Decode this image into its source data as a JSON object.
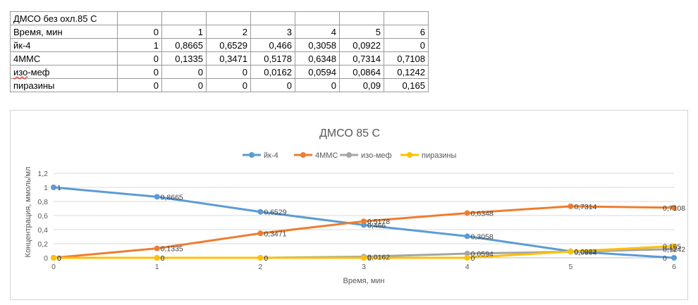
{
  "table": {
    "title": "ДМСО без охл.85 С",
    "rows": [
      {
        "label": "Время, мин",
        "values": [
          "0",
          "1",
          "2",
          "3",
          "4",
          "5",
          "6"
        ]
      },
      {
        "label": "йк-4",
        "values": [
          "1",
          "0,8665",
          "0,6529",
          "0,466",
          "0,3058",
          "0,0922",
          "0"
        ]
      },
      {
        "label": "4ММС",
        "values": [
          "0",
          "0,1335",
          "0,3471",
          "0,5178",
          "0,6348",
          "0,7314",
          "0,7108"
        ]
      },
      {
        "label": "изо-меф",
        "values": [
          "0",
          "0",
          "0",
          "0,0162",
          "0,0594",
          "0,0864",
          "0,1242"
        ]
      },
      {
        "label": "пиразины",
        "values": [
          "0",
          "0",
          "0",
          "0",
          "0",
          "0,09",
          "0,165"
        ]
      }
    ]
  },
  "chart_data": {
    "type": "line",
    "title": "ДМСО 85 С",
    "xlabel": "Время, мин",
    "ylabel": "Концентрация, ммоль/мл",
    "x": [
      0,
      1,
      2,
      3,
      4,
      5,
      6
    ],
    "xlim": [
      0,
      6
    ],
    "ylim": [
      0,
      1.2
    ],
    "yticks": [
      "0",
      "0,2",
      "0,4",
      "0,6",
      "0,8",
      "1",
      "1,2"
    ],
    "xticks": [
      "0",
      "1",
      "2",
      "3",
      "4",
      "5",
      "6"
    ],
    "grid": true,
    "legend_position": "top",
    "series": [
      {
        "name": "йк-4",
        "color": "#5b9bd5",
        "values": [
          1,
          0.8665,
          0.6529,
          0.466,
          0.3058,
          0.0922,
          0
        ],
        "labels": [
          "1",
          "0,8665",
          "0,6529",
          "0,466",
          "0,3058",
          "0,0922",
          "0"
        ]
      },
      {
        "name": "4ММС",
        "color": "#ed7d31",
        "values": [
          0,
          0.1335,
          0.3471,
          0.5178,
          0.6348,
          0.7314,
          0.7108
        ],
        "labels": [
          "0",
          "0,1335",
          "0,3471",
          "0,5178",
          "0,6348",
          "0,7314",
          "0,7108"
        ]
      },
      {
        "name": "изо-меф",
        "color": "#a5a5a5",
        "values": [
          0,
          0,
          0,
          0.0162,
          0.0594,
          0.0864,
          0.1242
        ],
        "labels": [
          "0",
          "0",
          "0",
          "0,0162",
          "0,0594",
          "0,0864",
          "0,1242"
        ]
      },
      {
        "name": "пиразины",
        "color": "#ffc000",
        "values": [
          0,
          0,
          0,
          0,
          0,
          0.09,
          0.165
        ],
        "labels": [
          "0",
          "0",
          "0",
          "0",
          "0",
          "0,09",
          "0,165"
        ]
      }
    ]
  }
}
